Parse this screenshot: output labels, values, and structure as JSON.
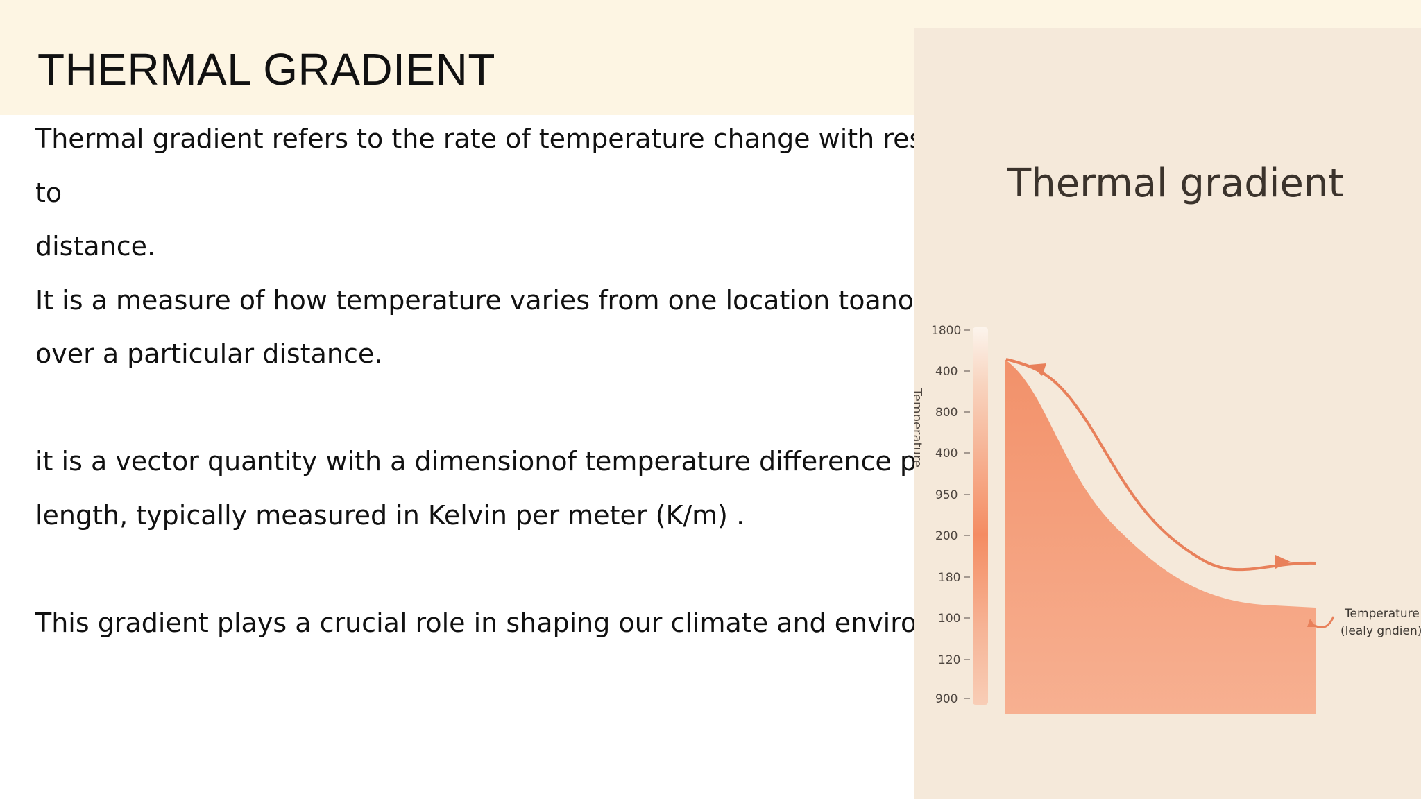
{
  "slide": {
    "title": "THERMAL GRADIENT",
    "paragraphs": [
      "Thermal gradient refers to the rate of temperature change with resp",
      "to",
      "distance.",
      "It is a measure of how temperature varies from one location toanoth",
      "over a particular distance.",
      "",
      "it is a vector quantity with a dimensionof temperature difference pe",
      "length, typically measured in Kelvin per meter (K/m) .",
      "",
      "This gradient plays a crucial role in shaping our climate and environm"
    ]
  },
  "figure": {
    "title": "Thermal gradient",
    "axis_label": "Temperature",
    "tick_labels": [
      "1800",
      "400",
      "800",
      "400",
      "950",
      "200",
      "180",
      "100",
      "120",
      "900"
    ],
    "annotation": [
      "Temperature",
      "(lealy gndien)"
    ],
    "colors": {
      "background": "#f5e9da",
      "fill": "#f39b77",
      "arrow": "#e8805a",
      "bar_top": "#fbf2ea",
      "bar_mid": "#f48c62"
    }
  }
}
